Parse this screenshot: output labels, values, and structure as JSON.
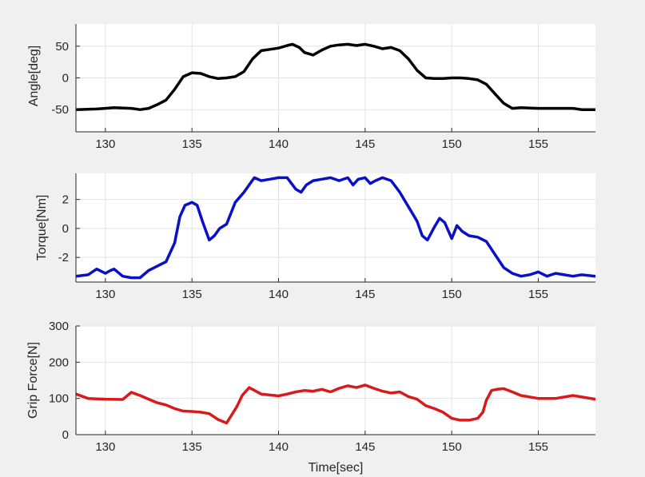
{
  "figure": {
    "background": "#f0f0f0",
    "plot_background": "#ffffff",
    "grid_color": "#e3e3e3",
    "axis_color": "#262626"
  },
  "chart_data": [
    {
      "type": "line",
      "ylabel": "Angle[deg]",
      "xlabel": "",
      "xlim": [
        128.3,
        158.3
      ],
      "ylim": [
        -85,
        85
      ],
      "xticks": [
        130,
        135,
        140,
        145,
        150,
        155
      ],
      "yticks": [
        -50,
        0,
        50
      ],
      "grid": true,
      "series": [
        {
          "color": "#000000",
          "x": [
            128.3,
            129.5,
            130.5,
            131.5,
            132.0,
            132.5,
            133.0,
            133.5,
            134.0,
            134.5,
            135.0,
            135.5,
            136.0,
            136.5,
            137.0,
            137.5,
            138.0,
            138.5,
            139.0,
            139.5,
            140.0,
            140.5,
            140.8,
            141.2,
            141.5,
            142.0,
            142.5,
            143.0,
            143.5,
            144.0,
            144.5,
            145.0,
            145.5,
            146.0,
            146.5,
            147.0,
            147.5,
            148.0,
            148.5,
            149.0,
            149.5,
            150.0,
            150.5,
            151.0,
            151.5,
            152.0,
            152.5,
            153.0,
            153.5,
            154.0,
            155.0,
            156.0,
            157.0,
            157.5,
            158.3
          ],
          "y": [
            -50,
            -49,
            -47,
            -48,
            -50,
            -48,
            -42,
            -35,
            -18,
            2,
            8,
            7,
            2,
            -1,
            0,
            2,
            10,
            30,
            43,
            45,
            47,
            51,
            53,
            48,
            40,
            36,
            44,
            50,
            52,
            53,
            51,
            53,
            50,
            46,
            48,
            43,
            30,
            12,
            0,
            -1,
            -1,
            0,
            0,
            -1,
            -3,
            -10,
            -25,
            -40,
            -48,
            -47,
            -48,
            -48,
            -48,
            -50,
            -50
          ]
        }
      ]
    },
    {
      "type": "line",
      "ylabel": "Torque[Nm]",
      "xlabel": "",
      "xlim": [
        128.3,
        158.3
      ],
      "ylim": [
        -3.7,
        3.8
      ],
      "xticks": [
        130,
        135,
        140,
        145,
        150,
        155
      ],
      "yticks": [
        -2,
        0,
        2
      ],
      "grid": true,
      "series": [
        {
          "color": "#0a10c8",
          "x": [
            128.3,
            129.0,
            129.5,
            130.0,
            130.3,
            130.5,
            131.0,
            131.5,
            132.0,
            132.5,
            133.0,
            133.5,
            134.0,
            134.3,
            134.6,
            135.0,
            135.3,
            135.6,
            136.0,
            136.3,
            136.6,
            137.0,
            137.5,
            138.0,
            138.3,
            138.6,
            139.0,
            139.5,
            140.0,
            140.5,
            141.0,
            141.3,
            141.6,
            142.0,
            142.5,
            143.0,
            143.5,
            144.0,
            144.3,
            144.6,
            145.0,
            145.3,
            145.6,
            146.0,
            146.5,
            147.0,
            147.5,
            148.0,
            148.3,
            148.6,
            149.0,
            149.3,
            149.6,
            150.0,
            150.3,
            150.6,
            151.0,
            151.5,
            152.0,
            152.5,
            153.0,
            153.5,
            154.0,
            154.5,
            155.0,
            155.5,
            156.0,
            156.5,
            157.0,
            157.5,
            158.3
          ],
          "y": [
            -3.3,
            -3.2,
            -2.8,
            -3.1,
            -2.9,
            -2.8,
            -3.3,
            -3.4,
            -3.4,
            -2.9,
            -2.6,
            -2.3,
            -1.0,
            0.8,
            1.6,
            1.8,
            1.6,
            0.5,
            -0.8,
            -0.5,
            0.0,
            0.3,
            1.8,
            2.5,
            3.0,
            3.5,
            3.3,
            3.4,
            3.5,
            3.5,
            2.7,
            2.5,
            3.0,
            3.3,
            3.4,
            3.5,
            3.3,
            3.5,
            3.0,
            3.4,
            3.5,
            3.1,
            3.3,
            3.5,
            3.3,
            2.5,
            1.5,
            0.5,
            -0.5,
            -0.8,
            0.1,
            0.7,
            0.4,
            -0.7,
            0.2,
            -0.2,
            -0.5,
            -0.6,
            -0.9,
            -1.8,
            -2.7,
            -3.1,
            -3.3,
            -3.2,
            -3.0,
            -3.3,
            -3.1,
            -3.2,
            -3.3,
            -3.2,
            -3.3
          ]
        }
      ]
    },
    {
      "type": "line",
      "ylabel": "Grip Force[N]",
      "xlabel": "Time[sec]",
      "xlim": [
        128.3,
        158.3
      ],
      "ylim": [
        0,
        300
      ],
      "xticks": [
        130,
        135,
        140,
        145,
        150,
        155
      ],
      "yticks": [
        0,
        100,
        200,
        300
      ],
      "grid": true,
      "series": [
        {
          "color": "#d91a1a",
          "x": [
            128.3,
            129.0,
            130.0,
            131.0,
            131.5,
            132.0,
            132.5,
            133.0,
            133.5,
            134.0,
            134.5,
            135.0,
            135.5,
            136.0,
            136.5,
            137.0,
            137.3,
            137.6,
            137.9,
            138.3,
            139.0,
            140.0,
            140.5,
            141.0,
            141.5,
            142.0,
            142.5,
            143.0,
            143.5,
            144.0,
            144.5,
            145.0,
            145.5,
            146.0,
            146.5,
            147.0,
            147.5,
            148.0,
            148.5,
            149.0,
            149.5,
            150.0,
            150.5,
            151.0,
            151.5,
            151.8,
            152.0,
            152.3,
            152.6,
            153.0,
            153.5,
            154.0,
            155.0,
            156.0,
            157.0,
            158.3
          ],
          "y": [
            112,
            100,
            98,
            97,
            117,
            108,
            98,
            88,
            82,
            72,
            65,
            64,
            62,
            58,
            42,
            32,
            55,
            78,
            108,
            130,
            112,
            107,
            112,
            118,
            122,
            120,
            125,
            118,
            128,
            135,
            130,
            137,
            128,
            120,
            115,
            118,
            105,
            98,
            80,
            72,
            62,
            45,
            40,
            40,
            45,
            62,
            95,
            122,
            125,
            127,
            118,
            108,
            100,
            100,
            108,
            98
          ]
        }
      ]
    }
  ]
}
